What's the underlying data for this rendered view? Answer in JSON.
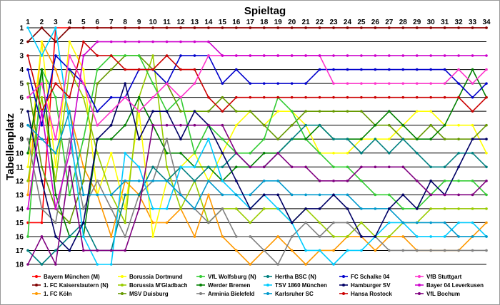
{
  "chart_data": {
    "type": "line",
    "title": "",
    "xlabel": "Spieltag",
    "ylabel": "Tabellenplatz",
    "x": [
      1,
      2,
      3,
      4,
      5,
      6,
      7,
      8,
      9,
      10,
      11,
      12,
      13,
      14,
      15,
      16,
      17,
      18,
      19,
      20,
      21,
      22,
      23,
      24,
      25,
      26,
      27,
      28,
      29,
      30,
      31,
      32,
      33,
      34
    ],
    "xlim": [
      1,
      34
    ],
    "ylim": [
      1,
      18
    ],
    "y_inverted": true,
    "grid": true,
    "legend_position": "bottom",
    "series": [
      {
        "name": "Bayern München (M)",
        "color": "#ff0000",
        "values": [
          15,
          15,
          1,
          1,
          1,
          1,
          1,
          1,
          1,
          1,
          1,
          1,
          1,
          1,
          1,
          1,
          1,
          1,
          1,
          1,
          1,
          1,
          1,
          1,
          1,
          1,
          1,
          1,
          1,
          1,
          1,
          1,
          1,
          1
        ]
      },
      {
        "name": "1. FC Kaiserslautern (N)",
        "color": "#800000",
        "values": [
          2,
          1,
          2,
          1,
          1,
          1,
          1,
          1,
          1,
          1,
          1,
          1,
          1,
          1,
          1,
          1,
          1,
          1,
          1,
          1,
          1,
          1,
          1,
          1,
          1,
          1,
          1,
          1,
          1,
          1,
          1,
          1,
          1,
          1
        ]
      },
      {
        "name": "1. FC Köln",
        "color": "#ff9900",
        "values": [
          13,
          2,
          4,
          7,
          11,
          13,
          16,
          12,
          13,
          15,
          15,
          14,
          16,
          13,
          16,
          17,
          18,
          17,
          16,
          17,
          18,
          17,
          17,
          16,
          16,
          17,
          16,
          16,
          17,
          17,
          17,
          17,
          16,
          15
        ]
      },
      {
        "name": "Borussia Dortmund",
        "color": "#ffff00",
        "values": [
          11,
          2,
          11,
          2,
          4,
          13,
          10,
          14,
          7,
          16,
          12,
          11,
          10,
          12,
          10,
          8,
          7,
          8,
          7,
          7,
          8,
          10,
          10,
          10,
          9,
          9,
          9,
          8,
          7,
          7,
          8,
          8,
          8,
          10
        ]
      },
      {
        "name": "Borussia M'Gladbach",
        "color": "#99cc00",
        "values": [
          12,
          6,
          12,
          4,
          6,
          10,
          13,
          15,
          6,
          3,
          11,
          14,
          12,
          15,
          14,
          14,
          15,
          14,
          14,
          15,
          14,
          15,
          16,
          16,
          15,
          16,
          16,
          15,
          15,
          14,
          14,
          14,
          14,
          14
        ]
      },
      {
        "name": "MSV Duisburg",
        "color": "#669900",
        "values": [
          5,
          11,
          14,
          15,
          12,
          5,
          4,
          3,
          3,
          4,
          5,
          7,
          7,
          7,
          6,
          7,
          7,
          8,
          9,
          8,
          7,
          7,
          7,
          7,
          7,
          8,
          8,
          9,
          9,
          8,
          9,
          9,
          9,
          8
        ]
      },
      {
        "name": "VfL Wolfsburg (N)",
        "color": "#33cc33",
        "values": [
          16,
          4,
          6,
          13,
          9,
          4,
          3,
          3,
          3,
          5,
          7,
          6,
          10,
          8,
          9,
          10,
          10,
          9,
          6,
          7,
          9,
          10,
          11,
          11,
          12,
          13,
          13,
          14,
          14,
          13,
          12,
          12,
          12,
          13
        ]
      },
      {
        "name": "Werder Bremen",
        "color": "#008000",
        "values": [
          10,
          4,
          13,
          16,
          16,
          9,
          9,
          8,
          6,
          8,
          10,
          10,
          11,
          11,
          12,
          11,
          11,
          10,
          10,
          9,
          9,
          8,
          9,
          9,
          9,
          8,
          7,
          8,
          9,
          9,
          8,
          6,
          4,
          6
        ]
      },
      {
        "name": "Arminia Bielefeld",
        "color": "#808080",
        "values": [
          9,
          14,
          15,
          9,
          14,
          12,
          14,
          16,
          13,
          12,
          9,
          13,
          14,
          15,
          14,
          16,
          16,
          17,
          18,
          16,
          15,
          16,
          15,
          15,
          16,
          16,
          17,
          17,
          17,
          17,
          17,
          17,
          17,
          17
        ]
      },
      {
        "name": "Hertha BSC (N)",
        "color": "#008080",
        "values": [
          17,
          18,
          17,
          16,
          15,
          17,
          17,
          13,
          13,
          11,
          12,
          11,
          12,
          11,
          11,
          10,
          11,
          11,
          10,
          9,
          8,
          8,
          9,
          9,
          10,
          9,
          10,
          9,
          10,
          11,
          11,
          10,
          10,
          11
        ]
      },
      {
        "name": "TSV 1860 München",
        "color": "#00ccff",
        "values": [
          1,
          3,
          1,
          8,
          16,
          18,
          18,
          10,
          11,
          14,
          14,
          11,
          11,
          9,
          12,
          13,
          14,
          13,
          14,
          15,
          17,
          17,
          18,
          17,
          17,
          16,
          15,
          15,
          16,
          16,
          16,
          15,
          15,
          16
        ]
      },
      {
        "name": "Karlsruher SC",
        "color": "#0099cc",
        "values": [
          8,
          9,
          10,
          7,
          13,
          13,
          13,
          12,
          12,
          12,
          12,
          13,
          14,
          12,
          13,
          13,
          13,
          12,
          12,
          13,
          13,
          13,
          13,
          13,
          14,
          14,
          14,
          15,
          15,
          15,
          15,
          16,
          16,
          16
        ]
      },
      {
        "name": "FC Schalke 04",
        "color": "#0000cc",
        "values": [
          4,
          8,
          3,
          4,
          5,
          7,
          6,
          6,
          4,
          4,
          5,
          3,
          3,
          3,
          5,
          4,
          5,
          5,
          5,
          5,
          5,
          4,
          4,
          4,
          4,
          4,
          4,
          4,
          4,
          4,
          4,
          5,
          6,
          5
        ]
      },
      {
        "name": "Hamburger SV",
        "color": "#000066",
        "values": [
          7,
          12,
          16,
          17,
          15,
          9,
          8,
          5,
          9,
          7,
          7,
          9,
          7,
          8,
          10,
          12,
          14,
          13,
          13,
          15,
          14,
          14,
          13,
          14,
          16,
          16,
          14,
          13,
          14,
          12,
          13,
          11,
          9,
          9
        ]
      },
      {
        "name": "Hansa Rostock",
        "color": "#cc0000",
        "values": [
          3,
          7,
          5,
          6,
          2,
          3,
          3,
          4,
          4,
          4,
          3,
          4,
          4,
          6,
          7,
          6,
          6,
          6,
          6,
          6,
          6,
          6,
          6,
          6,
          6,
          6,
          6,
          6,
          6,
          6,
          6,
          6,
          7,
          6
        ]
      },
      {
        "name": "VfB Stuttgart",
        "color": "#ff33cc",
        "values": [
          6,
          5,
          9,
          3,
          5,
          8,
          7,
          6,
          7,
          6,
          5,
          6,
          5,
          3,
          3,
          3,
          3,
          3,
          3,
          3,
          3,
          3,
          5,
          5,
          5,
          5,
          5,
          5,
          5,
          5,
          5,
          4,
          5,
          4
        ]
      },
      {
        "name": "Bayer 04 Leverkusen",
        "color": "#cc00cc",
        "values": [
          14,
          7,
          14,
          10,
          3,
          2,
          2,
          2,
          2,
          2,
          2,
          2,
          2,
          2,
          3,
          3,
          3,
          3,
          3,
          3,
          3,
          3,
          3,
          3,
          3,
          3,
          3,
          3,
          3,
          3,
          3,
          3,
          3,
          3
        ]
      },
      {
        "name": "VfL Bochum",
        "color": "#800080",
        "values": [
          18,
          16,
          18,
          11,
          17,
          17,
          17,
          17,
          14,
          8,
          8,
          8,
          8,
          8,
          8,
          10,
          11,
          11,
          10,
          11,
          11,
          12,
          12,
          12,
          11,
          11,
          11,
          11,
          12,
          13,
          13,
          13,
          13,
          12
        ]
      }
    ]
  }
}
